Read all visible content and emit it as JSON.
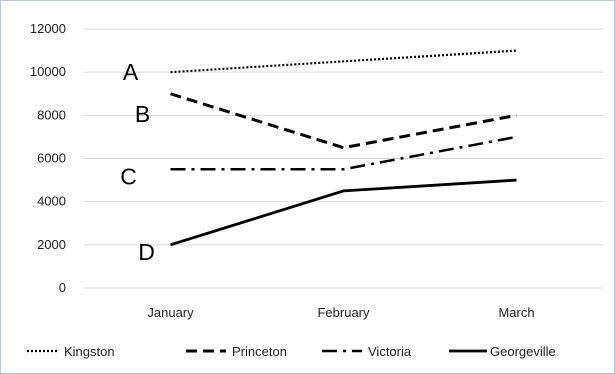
{
  "chart_data": {
    "type": "line",
    "categories": [
      "January",
      "February",
      "March"
    ],
    "series": [
      {
        "name": "Kingston",
        "values": [
          10000,
          10500,
          11000
        ],
        "dash": "dotted"
      },
      {
        "name": "Princeton",
        "values": [
          9000,
          6500,
          8000
        ],
        "dash": "dashed"
      },
      {
        "name": "Victoria",
        "values": [
          5500,
          5500,
          7000
        ],
        "dash": "dashdot"
      },
      {
        "name": "Georgeville",
        "values": [
          2000,
          4500,
          5000
        ],
        "dash": "solid"
      }
    ],
    "yticks": [
      "0",
      "2000",
      "4000",
      "6000",
      "8000",
      "10000",
      "12000"
    ],
    "ylim": [
      0,
      12000
    ],
    "grid": true,
    "legend": "bottom",
    "annotations": [
      {
        "text": "A",
        "series": "Kingston"
      },
      {
        "text": "B",
        "series": "Princeton"
      },
      {
        "text": "C",
        "series": "Victoria"
      },
      {
        "text": "D",
        "series": "Georgeville"
      }
    ],
    "colors": {
      "line": "#000000",
      "grid": "#d9d9d9",
      "border": "#bfc7d2"
    }
  }
}
